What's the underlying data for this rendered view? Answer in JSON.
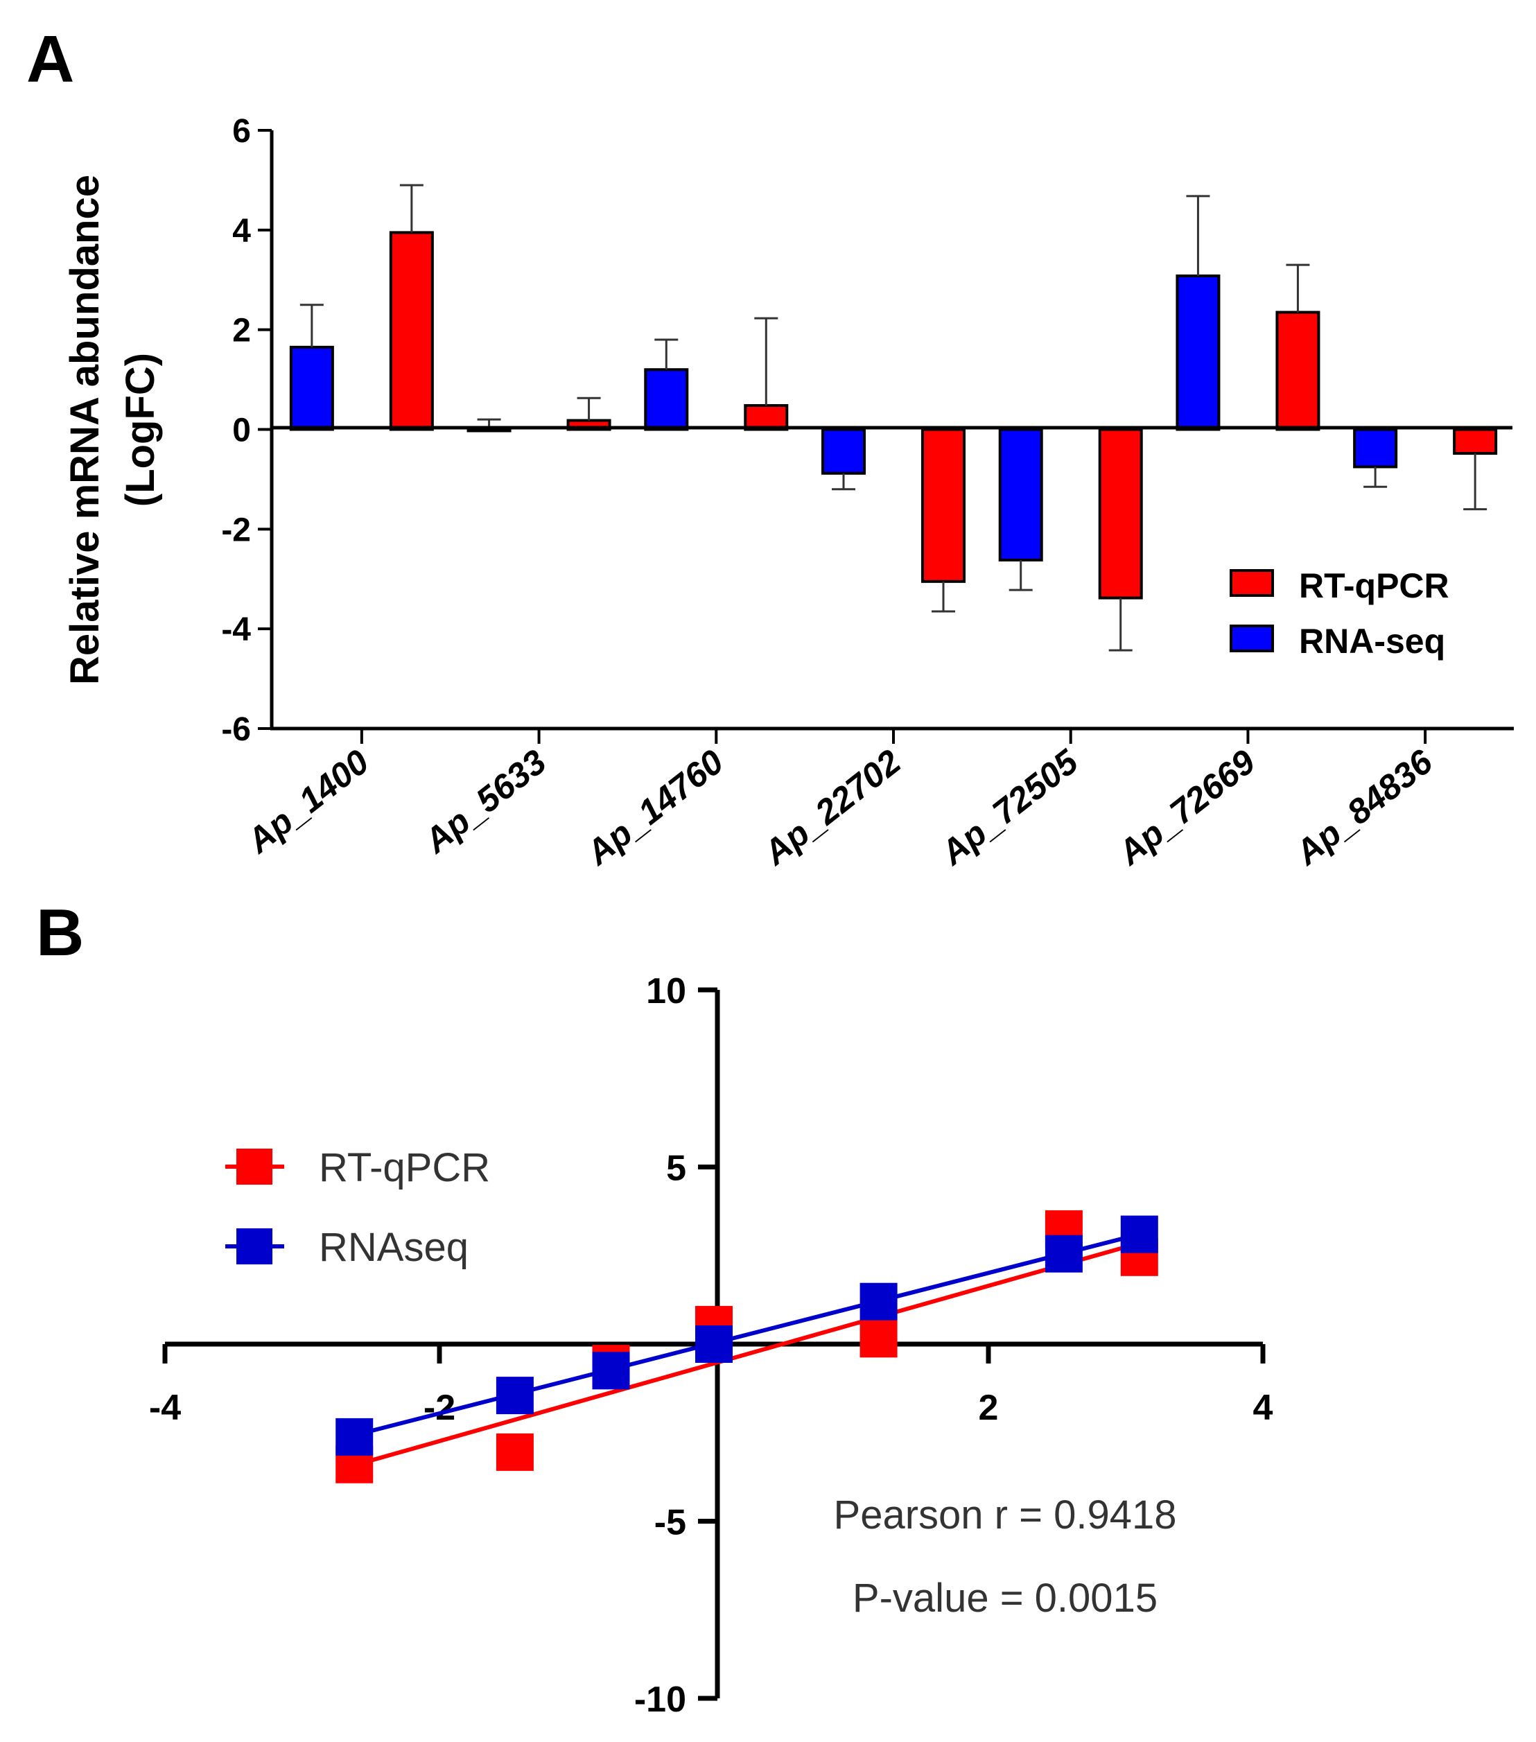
{
  "chart_data": [
    {
      "panel": "A",
      "type": "bar",
      "ylabel_line1": "Relative mRNA abundance",
      "ylabel_line2": "(LogFC)",
      "ylim": [
        -6,
        6
      ],
      "yticks": [
        6,
        4,
        2,
        0,
        -2,
        -4,
        -6
      ],
      "ytick_labels": [
        "6",
        "4",
        "2",
        "0",
        "-2",
        "-4",
        "-6"
      ],
      "categories": [
        "Ap_1400",
        "Ap_5633",
        "Ap_14760",
        "Ap_22702",
        "Ap_72505",
        "Ap_72669",
        "Ap_84836"
      ],
      "series": [
        {
          "name": "RNA-seq",
          "color": "#0000ff",
          "values": [
            1.65,
            0.0,
            1.2,
            -0.88,
            -2.62,
            3.08,
            -0.75
          ],
          "errors": [
            0.85,
            0.2,
            0.6,
            0.32,
            0.6,
            1.6,
            0.4
          ]
        },
        {
          "name": "RT-qPCR",
          "color": "#ff0000",
          "values": [
            3.95,
            0.18,
            0.48,
            -3.05,
            -3.38,
            2.35,
            -0.48
          ],
          "errors": [
            0.95,
            0.45,
            1.75,
            0.6,
            1.05,
            0.95,
            1.12
          ]
        }
      ],
      "legend": [
        "RT-qPCR",
        "RNA-seq"
      ],
      "legend_position": "lower-right"
    },
    {
      "panel": "B",
      "type": "scatter",
      "xlim": [
        -4,
        4
      ],
      "ylim": [
        -10,
        10
      ],
      "xticks": [
        -4,
        -2,
        2,
        4
      ],
      "xtick_labels": [
        "-4",
        "-2",
        "2",
        "4"
      ],
      "yticks": [
        10,
        5,
        -5,
        -10
      ],
      "ytick_labels": [
        "10",
        "5",
        "-5",
        "-10"
      ],
      "series": [
        {
          "name": "RT-qPCR",
          "color": "#ff0000",
          "x": [
            -2.62,
            -1.45,
            -0.75,
            0.0,
            1.2,
            2.55,
            3.1
          ],
          "y": [
            -3.4,
            -3.05,
            -0.55,
            0.55,
            0.15,
            3.25,
            2.45
          ],
          "fit": {
            "x": [
              -2.65,
              3.1
            ],
            "y": [
              -3.45,
              2.85
            ]
          }
        },
        {
          "name": "RNAseq",
          "color": "#0000cc",
          "x": [
            -2.62,
            -1.45,
            -0.75,
            0.0,
            1.2,
            2.55,
            3.1
          ],
          "y": [
            -2.62,
            -1.45,
            -0.75,
            0.0,
            1.2,
            2.55,
            3.1
          ],
          "fit": {
            "x": [
              -2.65,
              3.1
            ],
            "y": [
              -2.6,
              3.1
            ]
          }
        }
      ],
      "legend": [
        "RT-qPCR",
        "RNAseq"
      ],
      "legend_position": "top-left",
      "annotations": [
        "Pearson r = 0.9418",
        "P-value = 0.0015"
      ]
    }
  ],
  "panel_labels": [
    "A",
    "B"
  ]
}
